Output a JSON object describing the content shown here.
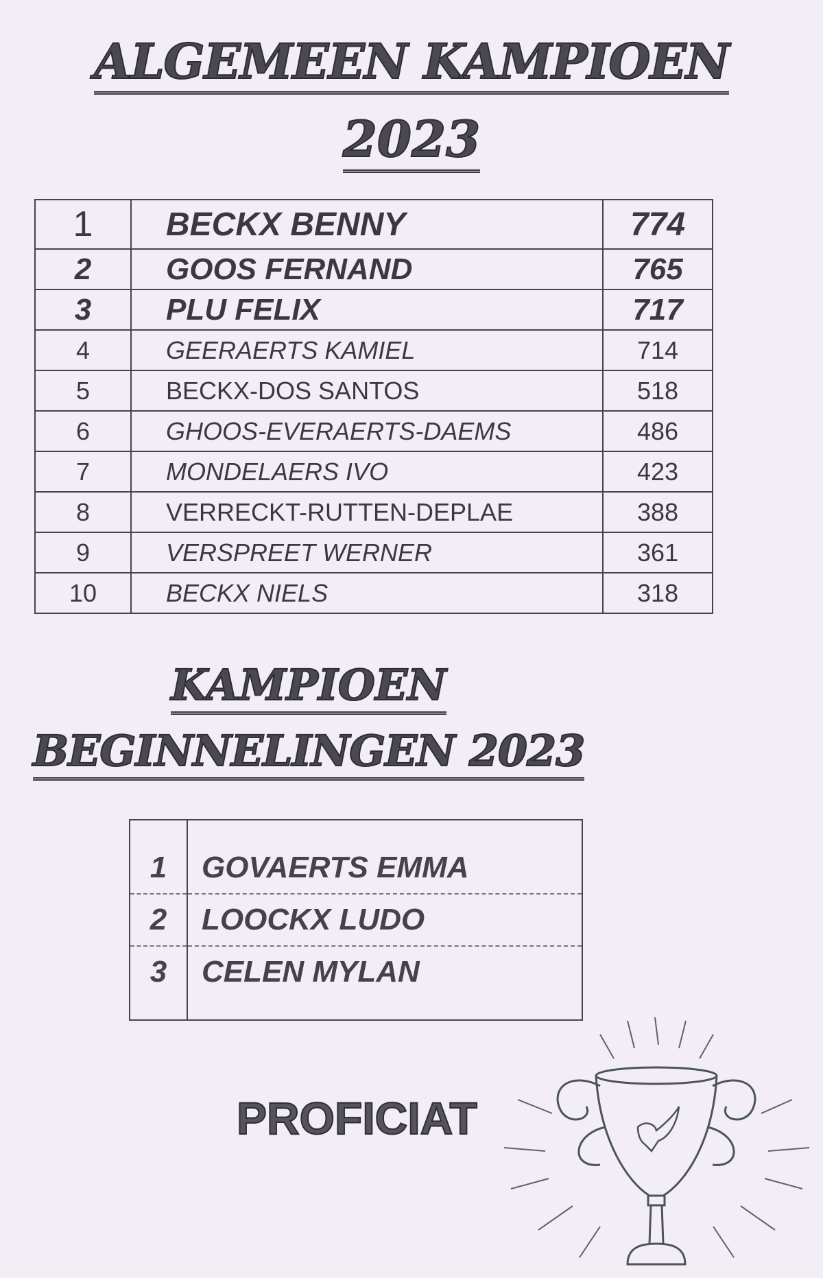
{
  "title_line1": "ALGEMEEN KAMPIOEN",
  "title_line2": "2023",
  "ranking": [
    {
      "rank": "1",
      "name": "BECKX BENNY",
      "score": "774"
    },
    {
      "rank": "2",
      "name": "GOOS FERNAND",
      "score": "765"
    },
    {
      "rank": "3",
      "name": "PLU FELIX",
      "score": "717"
    },
    {
      "rank": "4",
      "name": "GEERAERTS KAMIEL",
      "score": "714"
    },
    {
      "rank": "5",
      "name": "BECKX-DOS SANTOS",
      "score": "518"
    },
    {
      "rank": "6",
      "name": "GHOOS-EVERAERTS-DAEMS",
      "score": "486"
    },
    {
      "rank": "7",
      "name": "MONDELAERS IVO",
      "score": "423"
    },
    {
      "rank": "8",
      "name": "VERRECKT-RUTTEN-DEPLAE",
      "score": "388"
    },
    {
      "rank": "9",
      "name": "VERSPREET WERNER",
      "score": "361"
    },
    {
      "rank": "10",
      "name": "BECKX NIELS",
      "score": "318"
    }
  ],
  "beginners_title_line1": "KAMPIOEN",
  "beginners_title_line2": "BEGINNELINGEN 2023",
  "beginners": [
    {
      "rank": "1",
      "name": "GOVAERTS EMMA"
    },
    {
      "rank": "2",
      "name": "LOOCKX LUDO"
    },
    {
      "rank": "3",
      "name": "CELEN MYLAN"
    }
  ],
  "footer": "PROFICIAT",
  "icons": {
    "trophy": "trophy-with-dove-icon"
  },
  "colors": {
    "paper": "#f3edf6",
    "ink": "#3b3940"
  }
}
